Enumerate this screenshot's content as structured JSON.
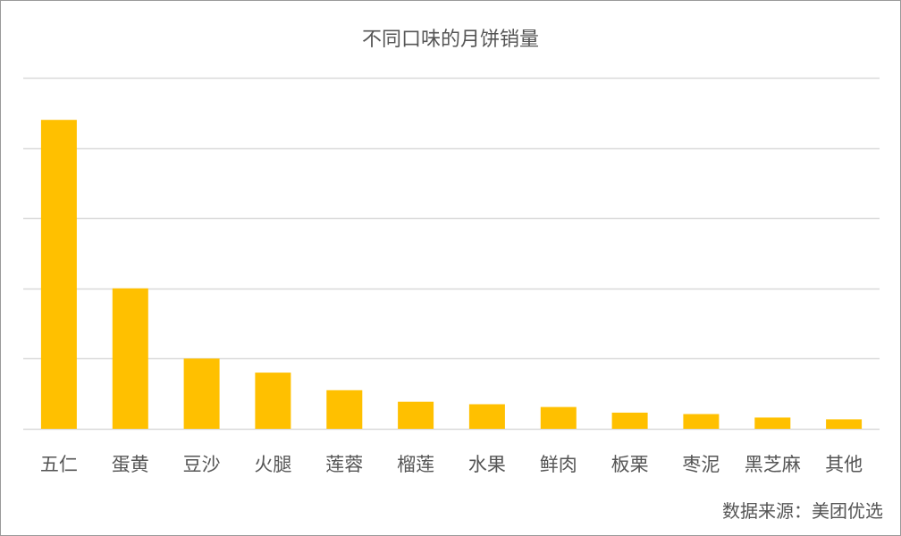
{
  "chart_data": {
    "type": "bar",
    "title": "不同口味的月饼销量",
    "source": "数据来源：美团优选",
    "categories": [
      "五仁",
      "蛋黄",
      "豆沙",
      "火腿",
      "莲蓉",
      "榴莲",
      "水果",
      "鲜肉",
      "板栗",
      "枣泥",
      "黑芝麻",
      "其他"
    ],
    "values": [
      88,
      40,
      20,
      16,
      11,
      7.7,
      7,
      6.2,
      4.6,
      4.2,
      3.2,
      2.7
    ],
    "ylim": [
      0,
      100
    ],
    "gridlines": [
      0,
      20,
      40,
      60,
      80,
      100
    ],
    "y_tick_labels_shown": false,
    "grid": true,
    "bar_color": "#ffc000",
    "grid_color": "#d9d9d9",
    "axis_label_color": "#555555"
  }
}
